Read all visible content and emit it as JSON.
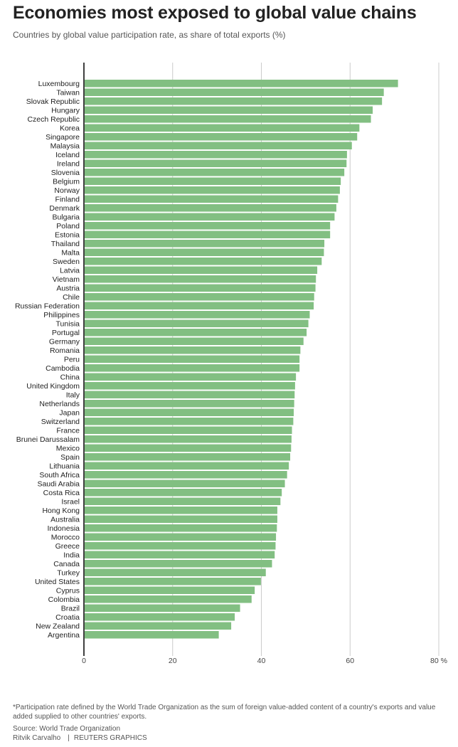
{
  "title": "Economies most exposed to global value chains",
  "subtitle": "Countries by global value participation rate, as share of total exports (%)",
  "footer": {
    "note": "*Participation rate defined by the World Trade Organization as the sum of foreign value-added content of a country's exports and value added supplied to other countries' exports.",
    "source": "Source: World Trade Organization",
    "author": "Ritvik Carvalho",
    "agency": "REUTERS GRAPHICS"
  },
  "colors": {
    "bar": "#82bf82",
    "grid": "#cccccc",
    "axis": "#000000",
    "text": "#222222"
  },
  "chart_data": {
    "type": "bar",
    "orientation": "horizontal",
    "xlim": [
      0,
      80
    ],
    "x_ticks": [
      "0",
      "20",
      "40",
      "60",
      "80 %"
    ],
    "grid": true,
    "categories": [
      "Luxembourg",
      "Taiwan",
      "Slovak Republic",
      "Hungary",
      "Czech Republic",
      "Korea",
      "Singapore",
      "Malaysia",
      "Iceland",
      "Ireland",
      "Slovenia",
      "Belgium",
      "Norway",
      "Finland",
      "Denmark",
      "Bulgaria",
      "Poland",
      "Estonia",
      "Thailand",
      "Malta",
      "Sweden",
      "Latvia",
      "Vietnam",
      "Austria",
      "Chile",
      "Russian Federation",
      "Philippines",
      "Tunisia",
      "Portugal",
      "Germany",
      "Romania",
      "Peru",
      "Cambodia",
      "China",
      "United Kingdom",
      "Italy",
      "Netherlands",
      "Japan",
      "Switzerland",
      "France",
      "Brunei Darussalam",
      "Mexico",
      "Spain",
      "Lithuania",
      "South Africa",
      "Saudi Arabia",
      "Costa Rica",
      "Israel",
      "Hong Kong",
      "Australia",
      "Indonesia",
      "Morocco",
      "Greece",
      "India",
      "Canada",
      "Turkey",
      "United States",
      "Cyprus",
      "Colombia",
      "Brazil",
      "Croatia",
      "New Zealand",
      "Argentina"
    ],
    "values": [
      70.8,
      67.6,
      67.2,
      65.1,
      64.7,
      62.1,
      61.6,
      60.4,
      59.3,
      59.2,
      58.7,
      57.9,
      57.7,
      57.3,
      56.9,
      56.5,
      55.5,
      55.5,
      54.2,
      54.1,
      53.6,
      52.6,
      52.3,
      52.2,
      51.9,
      51.8,
      50.9,
      50.6,
      50.2,
      49.5,
      48.8,
      48.6,
      48.6,
      47.8,
      47.6,
      47.5,
      47.4,
      47.3,
      47.2,
      46.9,
      46.8,
      46.7,
      46.5,
      46.2,
      45.8,
      45.3,
      44.6,
      44.3,
      43.6,
      43.6,
      43.5,
      43.3,
      43.2,
      43.0,
      42.4,
      41.0,
      39.9,
      38.5,
      37.8,
      35.2,
      34.0,
      33.2,
      30.4
    ]
  }
}
